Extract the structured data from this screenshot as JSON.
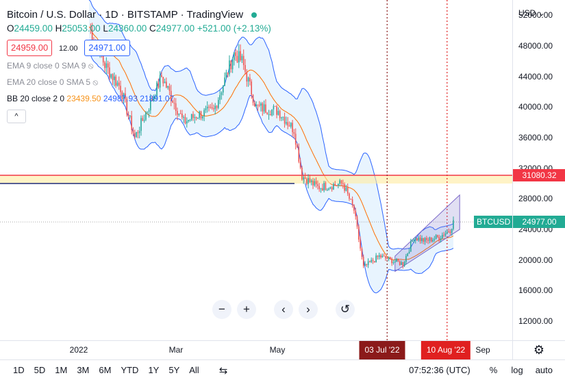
{
  "header": {
    "title": "Bitcoin / U.S. Dollar · 1D · BITSTAMP · TradingView",
    "ohlc": {
      "o_label": "O",
      "o": "24459.00",
      "h_label": "H",
      "h": "25053.00",
      "l_label": "L",
      "l": "24360.00",
      "c_label": "C",
      "c": "24977.00",
      "change": "+521.00 (+2.13%)"
    },
    "bid": "24959.00",
    "spread": "12.00",
    "ask": "24971.00"
  },
  "indicators": [
    {
      "label": "EMA 9 close 0 SMA 9"
    },
    {
      "label": "EMA 20 close 0 SMA 5"
    },
    {
      "label": "BB 20 close 2 0",
      "v1": "23439.50",
      "v2": "24987.93",
      "v3": "21891.07"
    }
  ],
  "collapse_glyph": "^",
  "price_axis": {
    "currency": "USD",
    "ticks": [
      "52000.00",
      "48000.00",
      "44000.00",
      "40000.00",
      "36000.00",
      "32000.00",
      "28000.00",
      "24000.00",
      "20000.00",
      "16000.00",
      "12000.00"
    ],
    "tick_values": [
      52000,
      48000,
      44000,
      40000,
      36000,
      32000,
      28000,
      24000,
      20000,
      16000,
      12000
    ],
    "labels": [
      {
        "text": "31080.32",
        "value": 31080.32,
        "color": "#f23645"
      },
      {
        "text": "24977.00",
        "value": 24977,
        "color": "#22ab94"
      }
    ],
    "symbol_label": "BTCUSD"
  },
  "time_axis": {
    "labels": [
      "2022",
      "Mar",
      "May",
      "Sep"
    ],
    "markers": [
      {
        "text": "03 Jul '22",
        "color": "#8b1a1a"
      },
      {
        "text": "10 Aug '22",
        "color": "#e02020"
      }
    ]
  },
  "timeframes": [
    "1D",
    "5D",
    "1M",
    "3M",
    "6M",
    "YTD",
    "1Y",
    "5Y",
    "All"
  ],
  "status": {
    "time": "07:52:36 (UTC)",
    "percent": "%",
    "log": "log",
    "auto": "auto"
  },
  "zoom_buttons": {
    "minus": "−",
    "plus": "+",
    "left": "‹",
    "right": "›",
    "reset": "↺"
  },
  "chart_data": {
    "type": "candlestick",
    "symbol": "BTCUSD",
    "exchange": "BITSTAMP",
    "interval": "1D",
    "ylim": [
      9500,
      54000
    ],
    "last_close": 24977,
    "horizontal_levels": [
      {
        "value": 31080.32,
        "color": "#f23645"
      },
      {
        "value": 30000,
        "color": "#1e2a78"
      }
    ],
    "vertical_markers": [
      "2022-07-03",
      "2022-08-10"
    ],
    "approx_close_path": [
      [
        "2021-12-26",
        50500
      ],
      [
        "2022-01-05",
        45500
      ],
      [
        "2022-01-15",
        42500
      ],
      [
        "2022-01-24",
        36000
      ],
      [
        "2022-02-05",
        41500
      ],
      [
        "2022-02-10",
        44000
      ],
      [
        "2022-02-24",
        38000
      ],
      [
        "2022-03-05",
        39000
      ],
      [
        "2022-03-15",
        39500
      ],
      [
        "2022-03-28",
        47000
      ],
      [
        "2022-04-02",
        46000
      ],
      [
        "2022-04-11",
        40000
      ],
      [
        "2022-04-25",
        39500
      ],
      [
        "2022-05-05",
        37000
      ],
      [
        "2022-05-10",
        31000
      ],
      [
        "2022-05-20",
        29500
      ],
      [
        "2022-06-05",
        30000
      ],
      [
        "2022-06-12",
        26500
      ],
      [
        "2022-06-18",
        19000
      ],
      [
        "2022-06-28",
        20500
      ],
      [
        "2022-07-05",
        20000
      ],
      [
        "2022-07-13",
        19500
      ],
      [
        "2022-07-20",
        23000
      ],
      [
        "2022-07-27",
        22500
      ],
      [
        "2022-08-05",
        23000
      ],
      [
        "2022-08-12",
        24000
      ],
      [
        "2022-08-14",
        24977
      ]
    ],
    "bollinger": {
      "upper": "24987.93",
      "middle": "23439.50",
      "lower": "21891.07"
    }
  }
}
